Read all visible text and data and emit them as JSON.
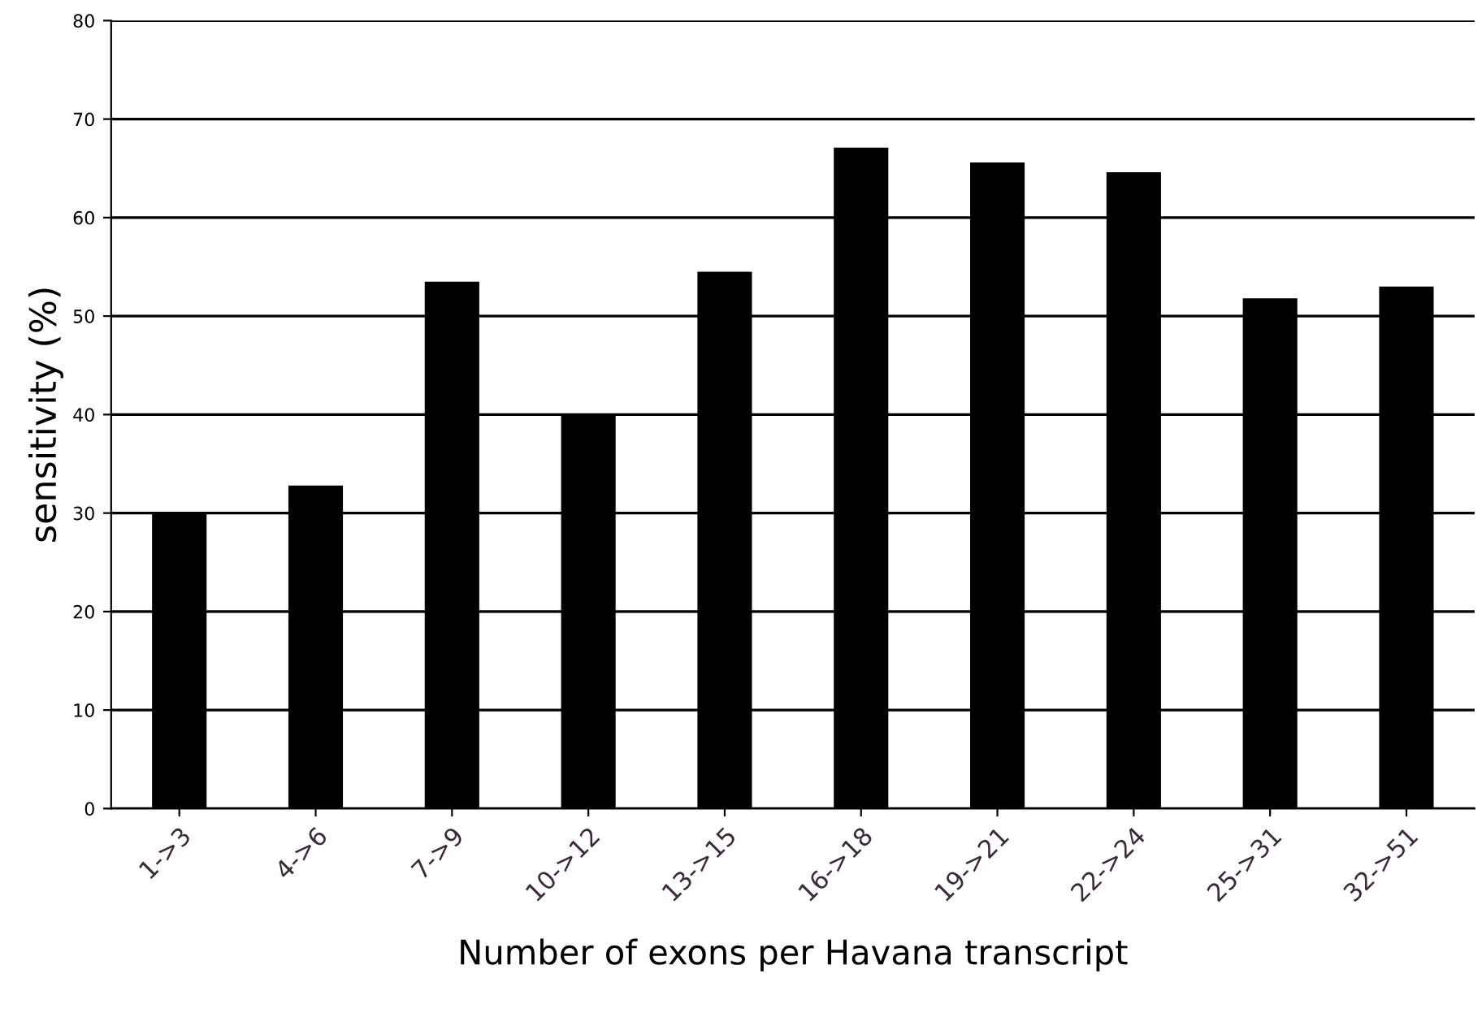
{
  "chart_data": {
    "type": "bar",
    "xlabel": "Number of exons per Havana transcript",
    "ylabel": "sensitivity (%)",
    "categories": [
      "1->3",
      "4->6",
      "7->9",
      "10->12",
      "13->15",
      "16->18",
      "19->21",
      "22->24",
      "25->31",
      "32->51"
    ],
    "values": [
      30,
      32.8,
      53.5,
      39.9,
      54.5,
      67.1,
      65.6,
      64.6,
      51.8,
      53.0
    ],
    "color": "#000000",
    "ylim": [
      0,
      80
    ],
    "yticks": [
      0,
      10,
      20,
      30,
      40,
      50,
      60,
      70,
      80
    ],
    "grid": "y",
    "legend": false
  }
}
